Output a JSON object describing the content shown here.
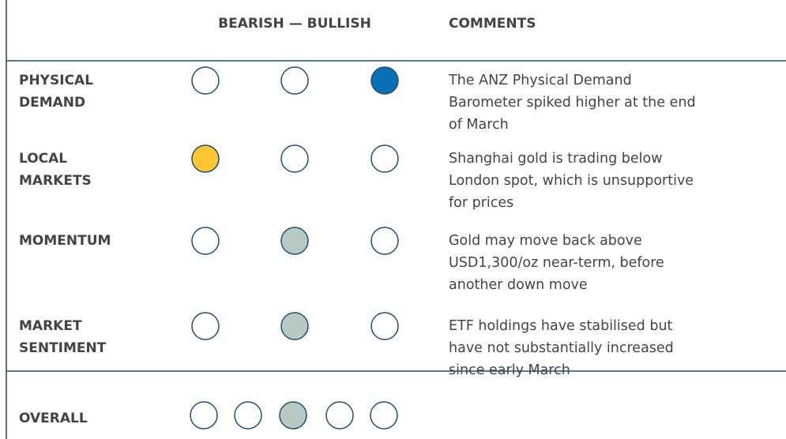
{
  "header": {
    "scale": "BEARISH — BULLISH",
    "comments": "COMMENTS"
  },
  "rows": [
    {
      "label": [
        "PHYSICAL",
        "DEMAND"
      ],
      "circles": [
        "none",
        "none",
        "#0a6fb4"
      ],
      "comment": [
        "The ANZ Physical Demand",
        "Barometer spiked higher at the end",
        "of March"
      ]
    },
    {
      "label": [
        "LOCAL",
        "MARKETS"
      ],
      "circles": [
        "#fdc632",
        "none",
        "none"
      ],
      "comment": [
        "Shanghai gold is trading below",
        "London spot, which is unsupportive",
        "for prices"
      ]
    },
    {
      "label": [
        "MOMENTUM"
      ],
      "circles": [
        "none",
        "#b8c9c4",
        "none"
      ],
      "comment": [
        "Gold may move back above",
        "USD1,300/oz near-term, before",
        "another down move"
      ]
    },
    {
      "label": [
        "MARKET",
        "SENTIMENT"
      ],
      "circles": [
        "none",
        "#b8c9c4",
        "none"
      ],
      "comment": [
        "ETF holdings have stabilised but",
        "have not substantially increased",
        "since early March"
      ]
    }
  ],
  "overall": {
    "label": "OVERALL",
    "circles": [
      "none",
      "none",
      "#b8c9c4",
      "none",
      "none"
    ]
  }
}
